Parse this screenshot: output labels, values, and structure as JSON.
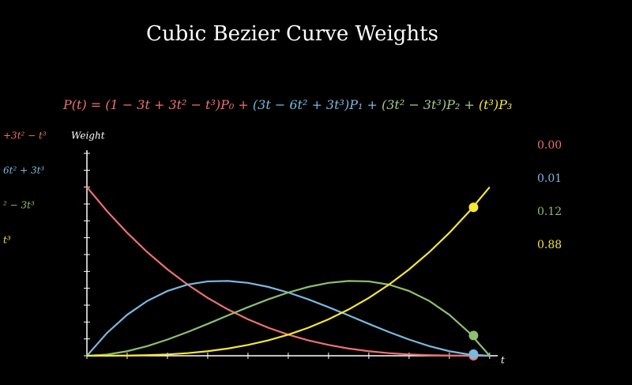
{
  "chart_data": {
    "type": "line",
    "title": "Cubic Bezier Curve Weights",
    "equation": [
      {
        "text": "P(t) = (1 − 3t + 3t² − t³)P₀ +",
        "color": "#f07070"
      },
      {
        "text": " (3t − 6t² + 3t³)P₁ +",
        "color": "#7ab8e0"
      },
      {
        "text": " (3t² − 3t³)P₂ +",
        "color": "#a9c98a"
      },
      {
        "text": " (t³)P₃",
        "color": "#f5e63a"
      }
    ],
    "y_label": "Weight",
    "x_label": "t",
    "x": [
      0,
      0.05,
      0.1,
      0.15,
      0.2,
      0.25,
      0.3,
      0.35,
      0.4,
      0.45,
      0.5,
      0.55,
      0.6,
      0.65,
      0.7,
      0.75,
      0.8,
      0.85,
      0.9,
      0.95,
      1
    ],
    "marker_t": 0.96,
    "series": [
      {
        "label": "+3t² − t³",
        "color": "#f07070",
        "current": 0,
        "current_label": "0.00",
        "values": [
          1,
          0.857375,
          0.729,
          0.614125,
          0.512,
          0.421875,
          0.343,
          0.274625,
          0.216,
          0.166375,
          0.125,
          0.091125,
          0.064,
          0.042875,
          0.027,
          0.015625,
          0.008,
          0.003375,
          0.001,
          0.000125,
          0
        ]
      },
      {
        "label": "6t² + 3t³",
        "color": "#7ab8e0",
        "current": 0.01,
        "current_label": "0.01",
        "values": [
          0,
          0.135375,
          0.243,
          0.325125,
          0.384,
          0.421875,
          0.441,
          0.443625,
          0.432,
          0.408375,
          0.375,
          0.334125,
          0.288,
          0.238875,
          0.189,
          0.140625,
          0.096,
          0.057375,
          0.027,
          0.007125,
          0
        ]
      },
      {
        "label": "² − 3t³",
        "color": "#8fbf70",
        "current": 0.12,
        "current_label": "0.12",
        "values": [
          0,
          0.007125,
          0.027,
          0.057375,
          0.096,
          0.140625,
          0.189,
          0.238875,
          0.288,
          0.334125,
          0.375,
          0.408375,
          0.432,
          0.443625,
          0.441,
          0.421875,
          0.384,
          0.325125,
          0.243,
          0.135375,
          0
        ]
      },
      {
        "label": "t³",
        "color": "#f5e63a",
        "current": 0.88,
        "current_label": "0.88",
        "values": [
          0,
          0.000125,
          0.001,
          0.003375,
          0.008,
          0.015625,
          0.027,
          0.042875,
          0.064,
          0.091125,
          0.125,
          0.166375,
          0.216,
          0.274625,
          0.343,
          0.421875,
          0.512,
          0.614125,
          0.729,
          0.857375,
          1
        ]
      }
    ],
    "xlim": [
      0,
      1.02
    ],
    "ylim": [
      0,
      1.2
    ],
    "xticks": [
      0,
      0.1,
      0.2,
      0.3,
      0.4,
      0.5,
      0.6,
      0.7,
      0.8,
      0.9,
      1
    ],
    "yticks": [
      0,
      0.1,
      0.2,
      0.3,
      0.4,
      0.5,
      0.6,
      0.7,
      0.8,
      0.9,
      1,
      1.1,
      1.2
    ]
  }
}
